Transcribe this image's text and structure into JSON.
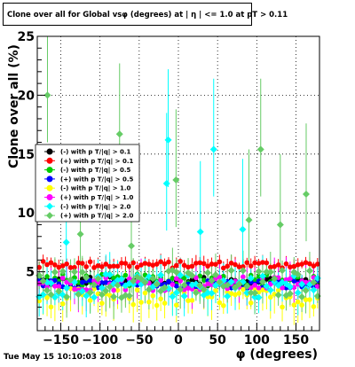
{
  "title": "Clone  over all for Global vsφ (degrees) at | η | <= 1.0 at pT > 0.11",
  "date": "Tue May 15 10:10:03 2018",
  "chart_data": {
    "type": "scatter",
    "xlabel": "φ (degrees)",
    "ylabel": "Clone  over all (%)",
    "xlim": [
      -180,
      180
    ],
    "ylim": [
      0,
      25
    ],
    "xticks": [
      -150,
      -100,
      -50,
      0,
      50,
      100,
      150
    ],
    "yticks": [
      5,
      10,
      15,
      20,
      25
    ],
    "xtick_labels": [
      "−150",
      "−100",
      "−50",
      "0",
      "50",
      "100",
      "150"
    ],
    "ytick_labels": [
      "5",
      "10",
      "15",
      "20",
      "25"
    ],
    "grid": true,
    "legend_position": "left",
    "series": [
      {
        "name": "(-) with p T/|q| > 0.1",
        "color": "#000000",
        "marker": "circle",
        "base": 4.2,
        "spread": 0.4
      },
      {
        "name": "(+) with p T/|q| > 0.1",
        "color": "#ff0000",
        "marker": "circle",
        "base": 5.6,
        "spread": 0.3
      },
      {
        "name": "(-) with p T/|q| > 0.5",
        "color": "#00cc00",
        "marker": "circle",
        "base": 4.3,
        "spread": 0.5
      },
      {
        "name": "(+) with p T/|q| > 0.5",
        "color": "#0000ff",
        "marker": "circle",
        "base": 3.9,
        "spread": 0.4
      },
      {
        "name": "(-) with p T/|q| > 1.0",
        "color": "#ffff00",
        "marker": "circle",
        "base": 2.8,
        "spread": 0.8
      },
      {
        "name": "(+) with p T/|q| > 1.0",
        "color": "#ff00ff",
        "marker": "circle",
        "base": 4.0,
        "spread": 0.6
      },
      {
        "name": "(-) with p T/|q| > 2.0",
        "color": "#00ffff",
        "marker": "diamond",
        "base": 3.8,
        "spread": 1.0
      },
      {
        "name": "(+) with p T/|q| > 2.0",
        "color": "#66cc66",
        "marker": "diamond",
        "base": 4.0,
        "spread": 1.2
      }
    ],
    "outliers": [
      {
        "series": 7,
        "x": -167,
        "y": 20.0
      },
      {
        "series": 7,
        "x": -75,
        "y": 16.7
      },
      {
        "series": 6,
        "x": -13,
        "y": 16.2
      },
      {
        "series": 6,
        "x": 45,
        "y": 15.4
      },
      {
        "series": 7,
        "x": 105,
        "y": 15.4
      },
      {
        "series": 7,
        "x": -3,
        "y": 12.8
      },
      {
        "series": 7,
        "x": 163,
        "y": 11.6
      },
      {
        "series": 6,
        "x": -15,
        "y": 12.5
      },
      {
        "series": 7,
        "x": 90,
        "y": 9.4
      },
      {
        "series": 6,
        "x": 28,
        "y": 8.4
      },
      {
        "series": 7,
        "x": -125,
        "y": 8.2
      },
      {
        "series": 6,
        "x": 82,
        "y": 8.6
      },
      {
        "series": 7,
        "x": 130,
        "y": 9.0
      },
      {
        "series": 6,
        "x": -143,
        "y": 7.5
      },
      {
        "series": 7,
        "x": -60,
        "y": 7.2
      }
    ]
  }
}
